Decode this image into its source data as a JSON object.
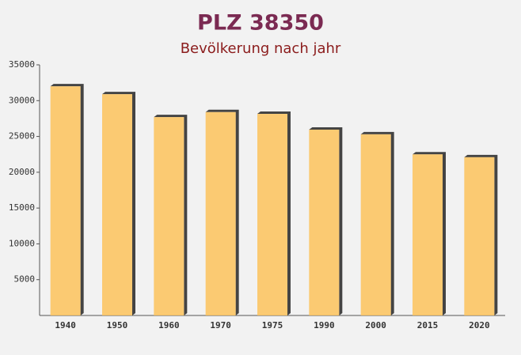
{
  "chart_data": {
    "type": "bar",
    "title": "PLZ 38350",
    "subtitle": "Bevölkerung nach jahr",
    "categories": [
      "1940",
      "1950",
      "1960",
      "1970",
      "1975",
      "1990",
      "2000",
      "2015",
      "2020"
    ],
    "values": [
      32000,
      30900,
      27700,
      28400,
      28150,
      25950,
      25300,
      22500,
      22100
    ],
    "color": "#fdc35c",
    "ylim": [
      0,
      35000
    ],
    "yticks": [
      5000,
      10000,
      15000,
      20000,
      25000,
      30000,
      35000
    ],
    "grid": false
  }
}
